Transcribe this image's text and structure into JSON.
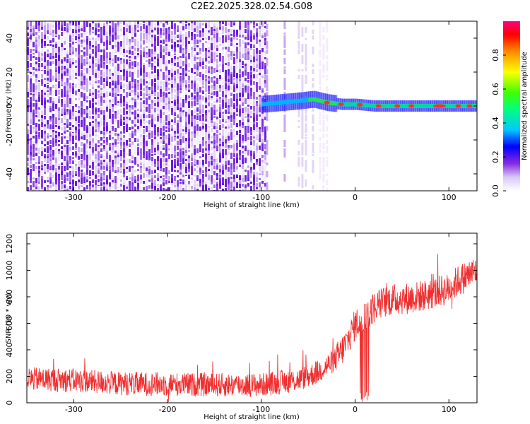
{
  "title": "C2E2.2025.328.02.54.G08",
  "chart_data": [
    {
      "type": "heatmap",
      "xlabel": "Height of straight line (km)",
      "ylabel": "Frequency (Hz)",
      "xlim": [
        -350,
        130
      ],
      "ylim": [
        -50,
        50
      ],
      "xticks": [
        -300,
        -200,
        -100,
        0,
        100
      ],
      "yticks": [
        -40,
        -20,
        0,
        20,
        40
      ],
      "colorbar": {
        "label": "Normalized spectral amplitude",
        "range": [
          0.0,
          1.0
        ],
        "ticks": [
          0.0,
          0.2,
          0.4,
          0.6,
          0.8
        ]
      },
      "noise_region": {
        "x": [
          -350,
          -95
        ],
        "level": 0.12
      },
      "trace": {
        "x": [
          -100,
          -80,
          -60,
          -45,
          -30,
          -15,
          0,
          20,
          50,
          90,
          130
        ],
        "center_hz": [
          1,
          2,
          3,
          4,
          2,
          1,
          1,
          0,
          0,
          0,
          0
        ]
      }
    },
    {
      "type": "line",
      "xlabel": "Height of straight line (km)",
      "ylabel": "SNR (10 * v/v)",
      "xlim": [
        -350,
        130
      ],
      "ylim": [
        0,
        1280
      ],
      "xticks": [
        -300,
        -200,
        -100,
        0,
        100
      ],
      "yticks": [
        0,
        200,
        400,
        600,
        800,
        1000,
        1200
      ],
      "color": "#f03030",
      "series": [
        {
          "x": [
            -350,
            -300,
            -250,
            -200,
            -150,
            -100,
            -60,
            -40,
            -20,
            -10,
            0,
            10,
            20,
            30,
            40,
            60,
            80,
            100,
            110,
            120,
            130
          ],
          "values": [
            180,
            170,
            145,
            140,
            135,
            135,
            175,
            230,
            330,
            440,
            590,
            650,
            720,
            760,
            780,
            790,
            820,
            860,
            920,
            960,
            1000
          ]
        }
      ]
    }
  ]
}
